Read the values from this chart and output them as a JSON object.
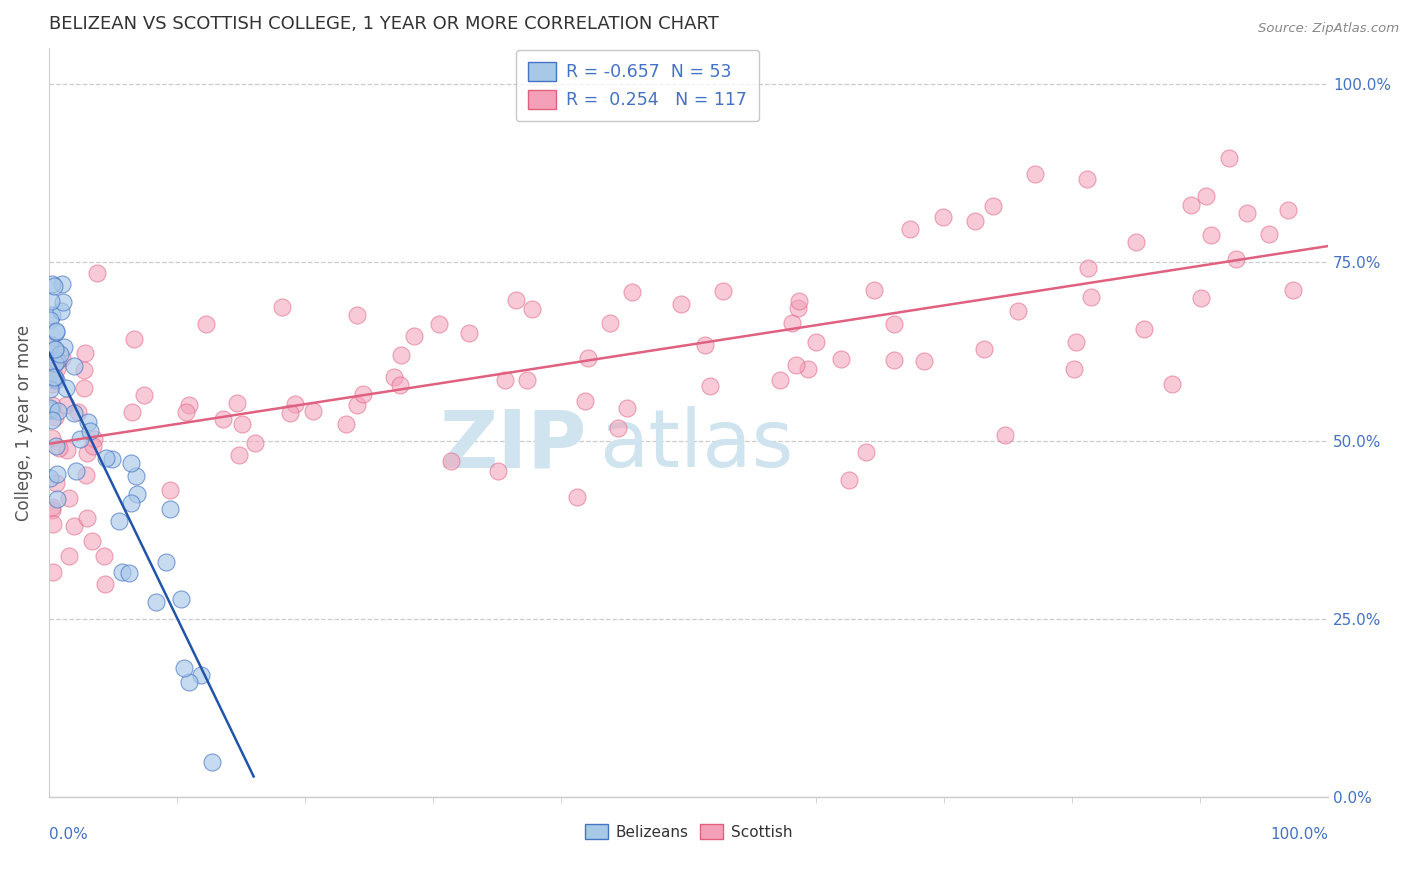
{
  "title": "BELIZEAN VS SCOTTISH COLLEGE, 1 YEAR OR MORE CORRELATION CHART",
  "source": "Source: ZipAtlas.com",
  "ylabel": "College, 1 year or more",
  "legend_blue_R": "-0.657",
  "legend_blue_N": "53",
  "legend_pink_R": "0.254",
  "legend_pink_N": "117",
  "blue_fill": "#a8c8e8",
  "blue_edge": "#4472c4",
  "blue_line": "#2255aa",
  "pink_fill": "#f4a0b8",
  "pink_edge": "#e06080",
  "pink_line": "#e06080",
  "watermark_color": "#d0e4f0",
  "label_color": "#4472c4",
  "grid_color": "#cccccc",
  "title_color": "#333333",
  "source_color": "#888888"
}
